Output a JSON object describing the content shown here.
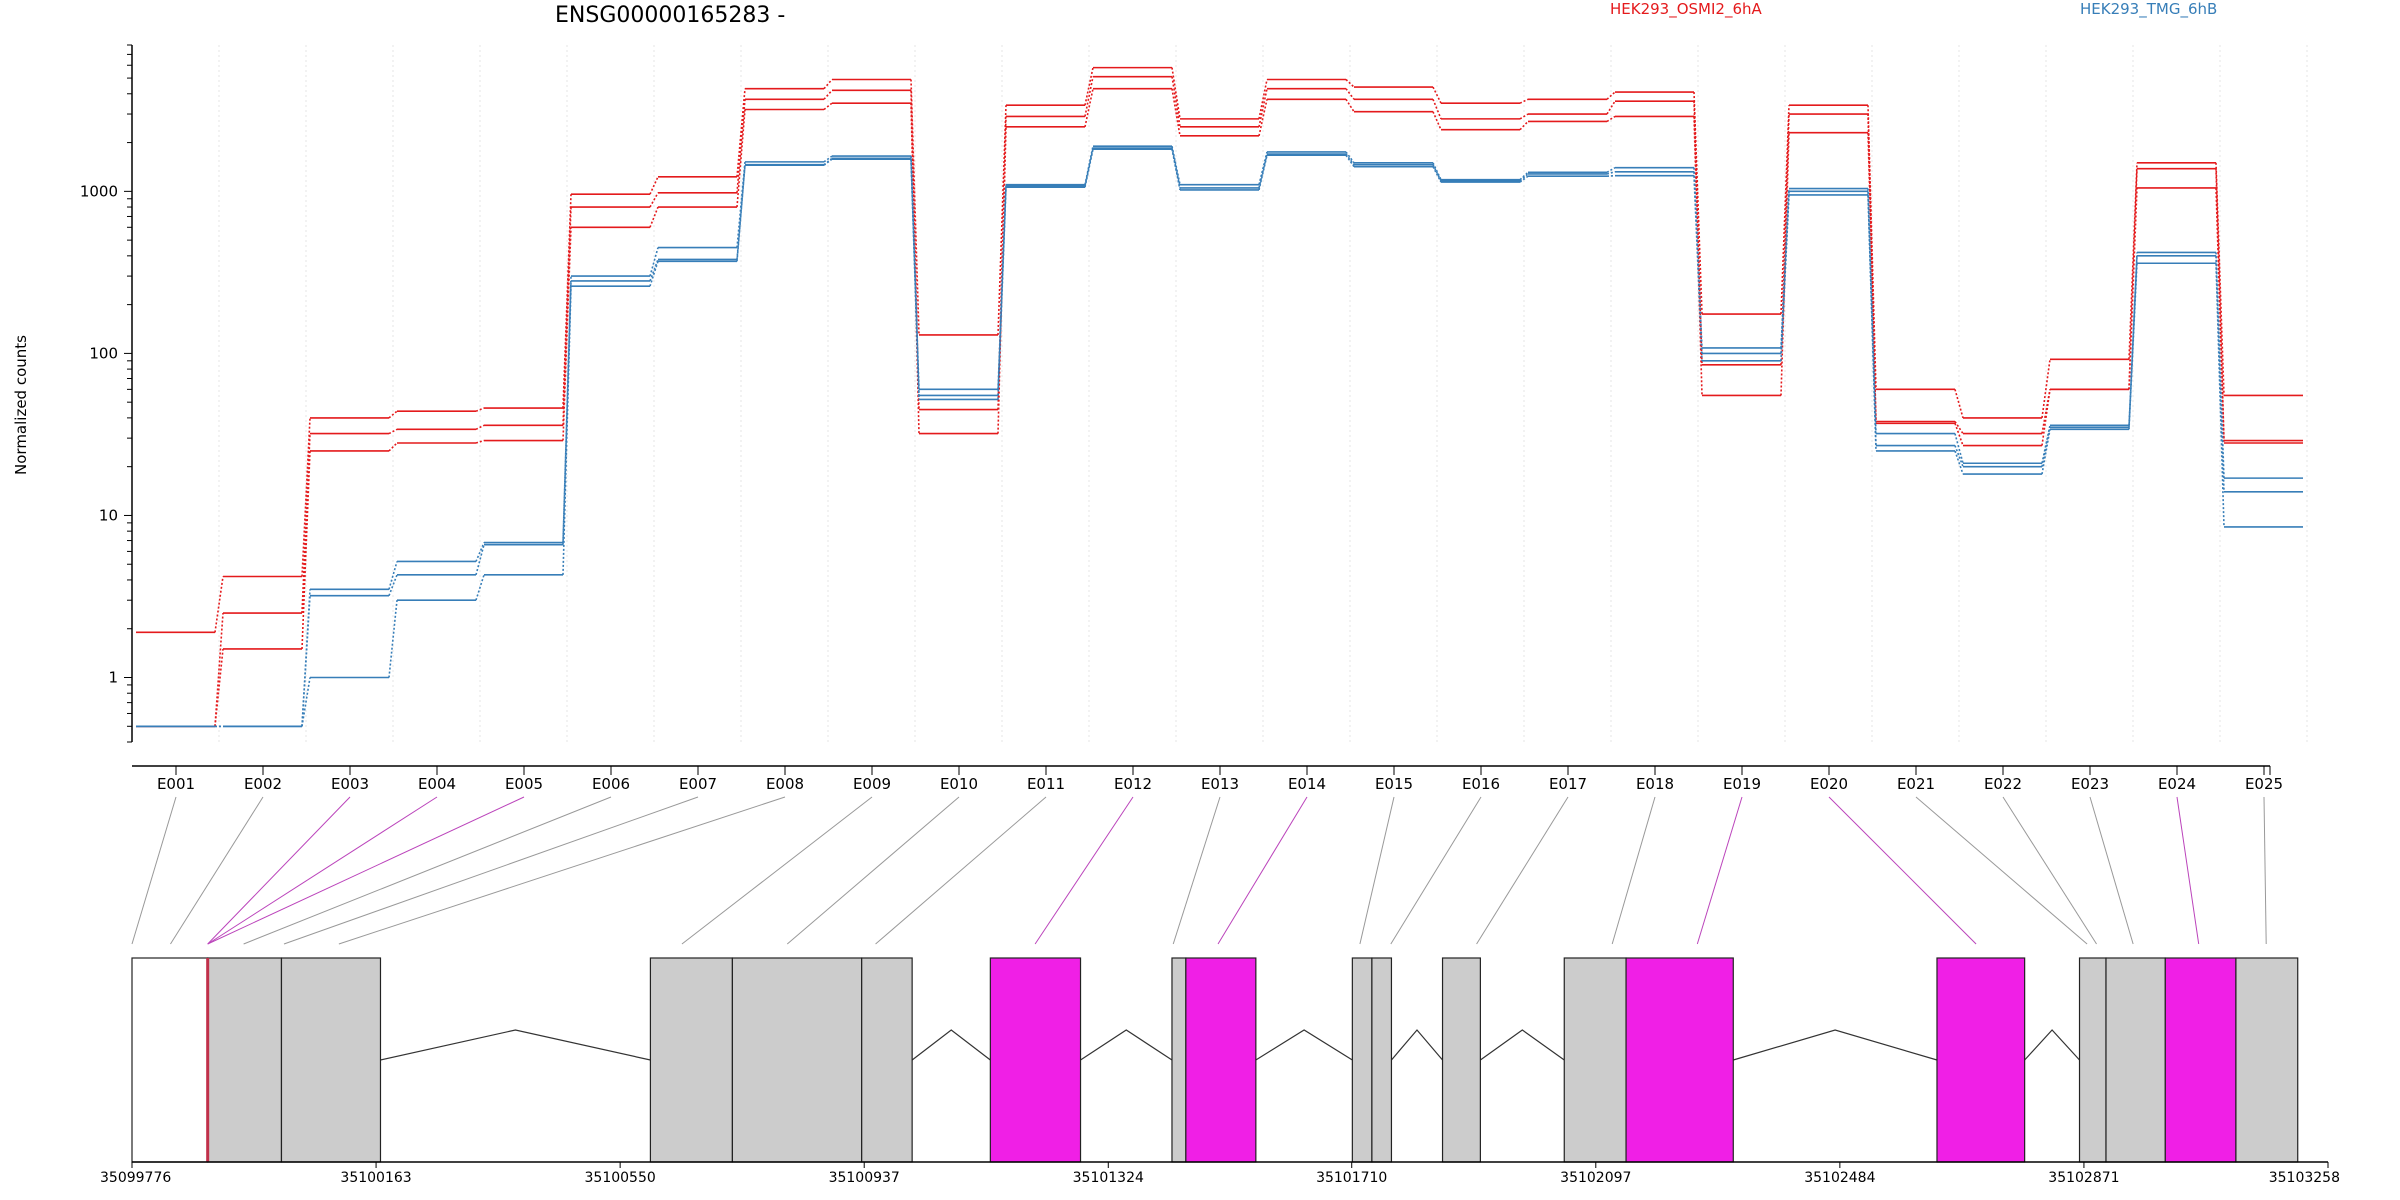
{
  "chart_data": {
    "type": "line",
    "title": "ENSG00000165283 -",
    "ylabel": "Normalized counts",
    "xlabel": "",
    "y_scale": "log",
    "ylim": [
      0.4,
      8000
    ],
    "y_ticks": [
      "1",
      "10",
      "100",
      "1000"
    ],
    "y_tick_values": [
      1,
      10,
      100,
      1000
    ],
    "grid": "vertical dotted at exon bins",
    "legend_placement": "top",
    "categories": [
      "E001",
      "E002",
      "E003",
      "E004",
      "E005",
      "E006",
      "E007",
      "E008",
      "E009",
      "E010",
      "E011",
      "E012",
      "E013",
      "E014",
      "E015",
      "E016",
      "E017",
      "E018",
      "E019",
      "E020",
      "E021",
      "E022",
      "E023",
      "E024",
      "E025"
    ],
    "groups": [
      {
        "name": "HEK293_OSMI2_6hA",
        "color": "#e41a1c"
      },
      {
        "name": "HEK293_TMG_6hB",
        "color": "#377eb8"
      }
    ],
    "series": [
      {
        "group": 0,
        "values": [
          1.9,
          4.2,
          40,
          44,
          46,
          960,
          1230,
          4300,
          4900,
          130,
          3400,
          5800,
          2800,
          4900,
          4400,
          3500,
          3700,
          4100,
          175,
          3400,
          60,
          40,
          92,
          1500,
          55
        ]
      },
      {
        "group": 0,
        "values": [
          0.5,
          2.5,
          32,
          34,
          36,
          800,
          980,
          3700,
          4200,
          45,
          2900,
          5100,
          2500,
          4300,
          3700,
          2800,
          3000,
          3600,
          85,
          3000,
          38,
          32,
          60,
          1380,
          29
        ]
      },
      {
        "group": 0,
        "values": [
          0.5,
          1.5,
          25,
          28,
          29,
          600,
          800,
          3200,
          3500,
          32,
          2500,
          4300,
          2200,
          3700,
          3100,
          2400,
          2700,
          2900,
          55,
          2300,
          37,
          27,
          60,
          1050,
          28
        ]
      },
      {
        "group": 1,
        "values": [
          0.5,
          0.5,
          3.5,
          5.2,
          6.8,
          300,
          450,
          1520,
          1650,
          60,
          1100,
          1900,
          1100,
          1750,
          1500,
          1180,
          1310,
          1400,
          108,
          1040,
          32,
          21,
          36,
          420,
          17
        ]
      },
      {
        "group": 1,
        "values": [
          0.5,
          0.5,
          3.2,
          4.3,
          6.6,
          280,
          380,
          1460,
          1600,
          55,
          1080,
          1850,
          1050,
          1700,
          1460,
          1160,
          1280,
          1320,
          100,
          1000,
          27,
          20,
          35,
          400,
          14
        ]
      },
      {
        "group": 1,
        "values": [
          0.5,
          0.5,
          1.0,
          3.0,
          4.3,
          260,
          370,
          1450,
          1580,
          52,
          1060,
          1820,
          1020,
          1670,
          1420,
          1140,
          1240,
          1250,
          90,
          950,
          25,
          18,
          34,
          360,
          8.5
        ]
      }
    ],
    "gene_model": {
      "coordinate_ticks": [
        "35099776",
        "35100163",
        "35100550",
        "35100937",
        "35101324",
        "35101710",
        "35102097",
        "35102484",
        "35102871",
        "35103258"
      ],
      "coord_tick_values": [
        35099776,
        35100163,
        35100550,
        35100937,
        35101324,
        35101710,
        35102097,
        35102484,
        35102871,
        35103258
      ],
      "coord_range": [
        35099776,
        35103258
      ],
      "colors": {
        "exon": "#cccccc",
        "highlight": "#f01fe6",
        "connector_gray": "#999999",
        "connector_magenta": "#bb44bb",
        "accent": "#c0304a"
      },
      "blocks": [
        {
          "start": 35099776,
          "end": 35099896,
          "kind": "white"
        },
        {
          "start": 35099896,
          "end": 35100013,
          "kind": "gray"
        },
        {
          "start": 35100013,
          "end": 35100170,
          "kind": "gray"
        },
        {
          "start": 35100598,
          "end": 35100728,
          "kind": "gray"
        },
        {
          "start": 35100728,
          "end": 35100933,
          "kind": "gray"
        },
        {
          "start": 35100933,
          "end": 35101013,
          "kind": "gray"
        },
        {
          "start": 35101137,
          "end": 35101280,
          "kind": "highlight"
        },
        {
          "start": 35101425,
          "end": 35101447,
          "kind": "gray"
        },
        {
          "start": 35101447,
          "end": 35101558,
          "kind": "highlight"
        },
        {
          "start": 35101711,
          "end": 35101742,
          "kind": "gray"
        },
        {
          "start": 35101742,
          "end": 35101773,
          "kind": "gray"
        },
        {
          "start": 35101854,
          "end": 35101914,
          "kind": "gray"
        },
        {
          "start": 35102047,
          "end": 35102145,
          "kind": "gray"
        },
        {
          "start": 35102145,
          "end": 35102315,
          "kind": "highlight"
        },
        {
          "start": 35102638,
          "end": 35102777,
          "kind": "highlight"
        },
        {
          "start": 35102864,
          "end": 35102906,
          "kind": "gray"
        },
        {
          "start": 35102906,
          "end": 35103000,
          "kind": "gray"
        },
        {
          "start": 35103000,
          "end": 35103112,
          "kind": "highlight"
        },
        {
          "start": 35103112,
          "end": 35103210,
          "kind": "gray"
        }
      ],
      "bin_targets": [
        35099776,
        35099837,
        35099896,
        35099896,
        35099896,
        35099953,
        35100017,
        35100104,
        35100648,
        35100815,
        35100955,
        35101208,
        35101427,
        35101498,
        35101723,
        35101772,
        35101908,
        35102123,
        35102258,
        35102700,
        35102876,
        35102891,
        35102949,
        35103053,
        35103160
      ],
      "bin_kinds": [
        "gray",
        "gray",
        "highlight",
        "highlight",
        "highlight",
        "gray",
        "gray",
        "gray",
        "gray",
        "gray",
        "gray",
        "highlight",
        "gray",
        "highlight",
        "gray",
        "gray",
        "gray",
        "gray",
        "highlight",
        "highlight",
        "gray",
        "gray",
        "gray",
        "highlight",
        "gray"
      ]
    }
  }
}
